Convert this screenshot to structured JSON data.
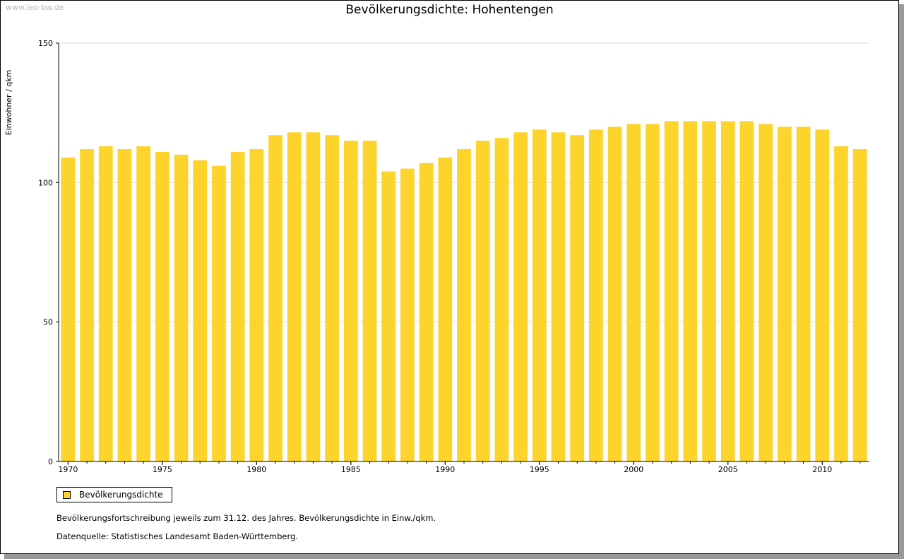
{
  "watermark": "www.leo-bw.de",
  "chart_data": {
    "type": "bar",
    "title": "Bevölkerungsdichte: Hohentengen",
    "ylabel": "Einwohner / qkm",
    "xlabel": "",
    "ylim": [
      0,
      150
    ],
    "yticks": [
      0,
      50,
      100,
      150
    ],
    "xticks": [
      1970,
      1975,
      1980,
      1985,
      1990,
      1995,
      2000,
      2005,
      2010
    ],
    "grid": true,
    "legend_placement": "bottom-left",
    "bar_color": "#fdd42c",
    "categories": [
      1970,
      1971,
      1972,
      1973,
      1974,
      1975,
      1976,
      1977,
      1978,
      1979,
      1980,
      1981,
      1982,
      1983,
      1984,
      1985,
      1986,
      1987,
      1988,
      1989,
      1990,
      1991,
      1992,
      1993,
      1994,
      1995,
      1996,
      1997,
      1998,
      1999,
      2000,
      2001,
      2002,
      2003,
      2004,
      2005,
      2006,
      2007,
      2008,
      2009,
      2010,
      2011,
      2012
    ],
    "series": [
      {
        "name": "Bevölkerungsdichte",
        "values": [
          109,
          112,
          113,
          112,
          113,
          111,
          110,
          108,
          106,
          111,
          112,
          117,
          118,
          118,
          117,
          115,
          115,
          104,
          105,
          107,
          109,
          112,
          115,
          116,
          118,
          119,
          118,
          117,
          119,
          120,
          121,
          121,
          122,
          122,
          122,
          122,
          122,
          121,
          120,
          120,
          119,
          113,
          112
        ]
      }
    ]
  },
  "notes": {
    "line1": "Bevölkerungsfortschreibung jeweils zum 31.12. des Jahres. Bevölkerungsdichte in Einw./qkm.",
    "line2": "Datenquelle: Statistisches Landesamt Baden-Württemberg."
  }
}
